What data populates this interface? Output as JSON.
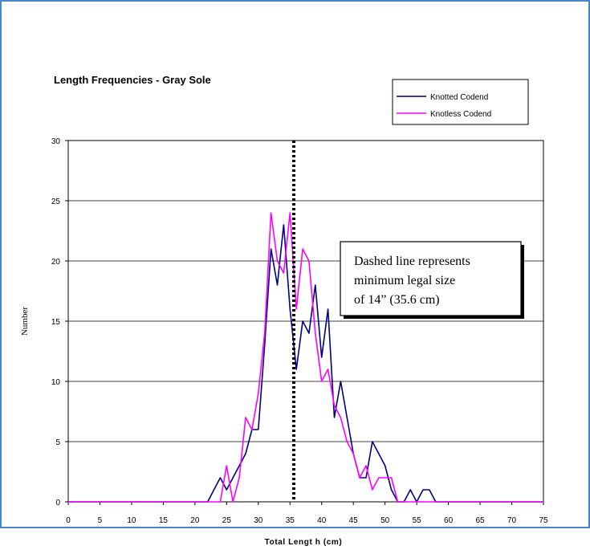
{
  "chart_data": {
    "type": "line",
    "title": "Length Frequencies - Gray Sole",
    "xlabel": "Total Lengt h (cm)",
    "ylabel": "Number",
    "xlim": [
      0,
      75
    ],
    "ylim": [
      0,
      30
    ],
    "xticks": [
      0,
      5,
      10,
      15,
      20,
      25,
      30,
      35,
      40,
      45,
      50,
      55,
      60,
      65,
      70,
      75
    ],
    "yticks": [
      0,
      5,
      10,
      15,
      20,
      25,
      30
    ],
    "grid": "horizontal",
    "legend_position": "top-right",
    "reference_line": {
      "x": 35.6,
      "style": "dashed"
    },
    "annotation": [
      "Dashed line represents",
      "minimum legal size",
      "of 14” (35.6 cm)"
    ],
    "x": [
      0,
      1,
      2,
      3,
      4,
      5,
      6,
      7,
      8,
      9,
      10,
      11,
      12,
      13,
      14,
      15,
      16,
      17,
      18,
      19,
      20,
      21,
      22,
      23,
      24,
      25,
      26,
      27,
      28,
      29,
      30,
      31,
      32,
      33,
      34,
      35,
      36,
      37,
      38,
      39,
      40,
      41,
      42,
      43,
      44,
      45,
      46,
      47,
      48,
      49,
      50,
      51,
      52,
      53,
      54,
      55,
      56,
      57,
      58,
      59,
      60,
      61,
      62,
      63,
      64,
      65,
      66,
      67,
      68,
      69,
      70,
      71,
      72,
      73,
      74,
      75
    ],
    "series": [
      {
        "name": "Knotted Codend",
        "color": "#000080",
        "values": [
          0,
          0,
          0,
          0,
          0,
          0,
          0,
          0,
          0,
          0,
          0,
          0,
          0,
          0,
          0,
          0,
          0,
          0,
          0,
          0,
          0,
          0,
          0,
          1,
          2,
          1,
          2,
          3,
          4,
          6,
          6,
          13,
          21,
          18,
          23,
          16,
          11,
          15,
          14,
          18,
          12,
          16,
          7,
          10,
          7,
          4,
          2,
          2,
          5,
          4,
          3,
          1,
          0,
          0,
          1,
          0,
          1,
          1,
          0,
          0,
          0,
          0,
          0,
          0,
          0,
          0,
          0,
          0,
          0,
          0,
          0,
          0,
          0,
          0,
          0,
          0
        ]
      },
      {
        "name": "Knotless Codend",
        "color": "#ff00ff",
        "values": [
          0,
          0,
          0,
          0,
          0,
          0,
          0,
          0,
          0,
          0,
          0,
          0,
          0,
          0,
          0,
          0,
          0,
          0,
          0,
          0,
          0,
          0,
          0,
          0,
          0,
          3,
          0,
          2,
          7,
          6,
          9,
          14,
          24,
          20,
          19,
          24,
          16,
          21,
          20,
          14,
          10,
          11,
          8,
          7,
          5,
          4,
          2,
          3,
          1,
          2,
          2,
          2,
          0,
          0,
          0,
          0,
          0,
          0,
          0,
          0,
          0,
          0,
          0,
          0,
          0,
          0,
          0,
          0,
          0,
          0,
          0,
          0,
          0,
          0,
          0,
          0
        ]
      }
    ]
  }
}
